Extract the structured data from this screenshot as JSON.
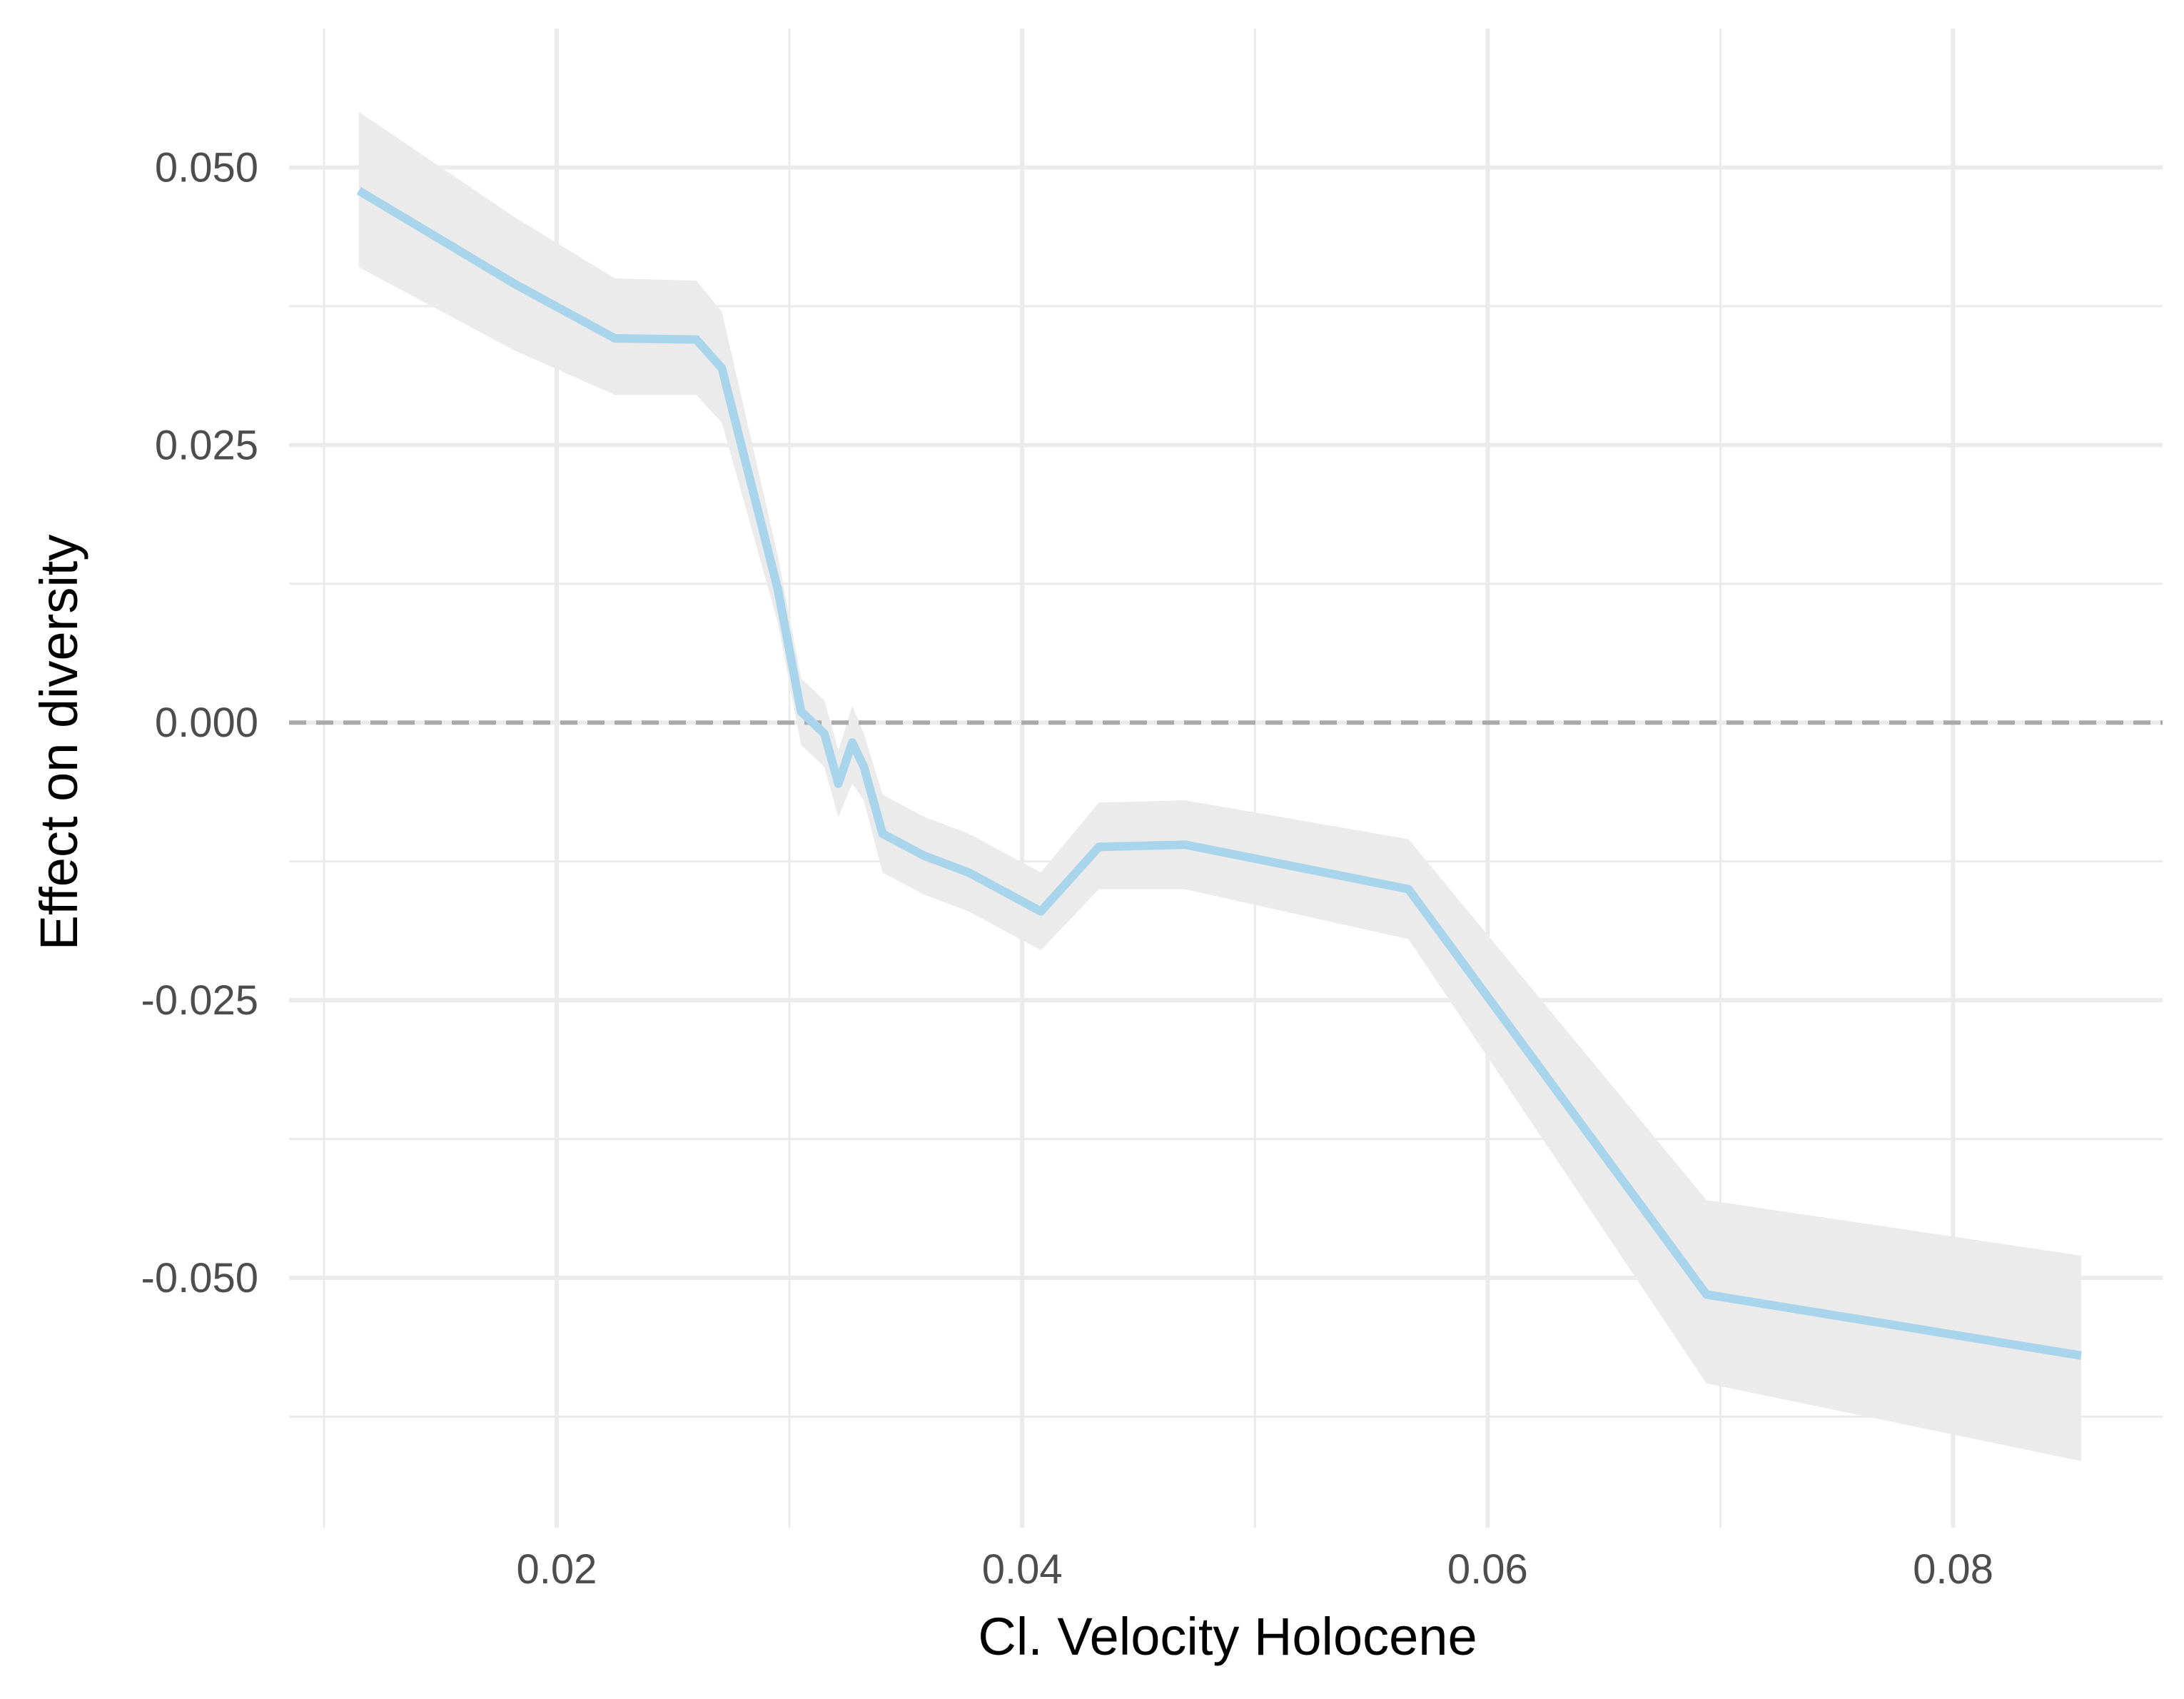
{
  "chart_data": {
    "type": "line",
    "title": "",
    "xlabel": "Cl. Velocity Holocene",
    "ylabel": "Effect on diversity",
    "xlim": [
      0.0085,
      0.089
    ],
    "ylim": [
      -0.0725,
      0.0625
    ],
    "x_ticks": [
      0.02,
      0.04,
      0.06,
      0.08
    ],
    "x_tick_labels": [
      "0.02",
      "0.04",
      "0.06",
      "0.08"
    ],
    "x_minor_ticks": [
      0.01,
      0.03,
      0.05,
      0.07
    ],
    "y_ticks": [
      0.05,
      0.025,
      0.0,
      -0.025,
      -0.05
    ],
    "y_tick_labels": [
      "0.050",
      "0.025",
      "0.000",
      "-0.025",
      "-0.050"
    ],
    "y_minor_ticks": [
      0.0375,
      0.0125,
      -0.0125,
      -0.0375,
      -0.0625
    ],
    "grid": true,
    "reference_line": {
      "y": 0.0,
      "style": "dashed",
      "color": "#aaaaaa"
    },
    "colors": {
      "line": "#a8d4ec",
      "ribbon": "#ebebeb",
      "grid": "#ebebeb"
    },
    "series": [
      {
        "name": "Effect on diversity",
        "x": [
          0.0115,
          0.0182,
          0.0225,
          0.026,
          0.0271,
          0.0295,
          0.0305,
          0.0315,
          0.0321,
          0.0327,
          0.0332,
          0.034,
          0.0358,
          0.0377,
          0.0408,
          0.0433,
          0.047,
          0.0566,
          0.0694,
          0.0855
        ],
        "y": [
          0.0479,
          0.0395,
          0.0346,
          0.0345,
          0.0319,
          0.012,
          0.001,
          -0.001,
          -0.0055,
          -0.0018,
          -0.004,
          -0.01,
          -0.012,
          -0.0135,
          -0.017,
          -0.0112,
          -0.011,
          -0.015,
          -0.0515,
          -0.057
        ],
        "lower": [
          0.041,
          0.0335,
          0.0295,
          0.0295,
          0.027,
          0.009,
          -0.002,
          -0.004,
          -0.0085,
          -0.0055,
          -0.007,
          -0.0135,
          -0.0155,
          -0.017,
          -0.0205,
          -0.015,
          -0.015,
          -0.0195,
          -0.0595,
          -0.0665
        ],
        "upper": [
          0.055,
          0.0455,
          0.04,
          0.0398,
          0.037,
          0.015,
          0.004,
          0.002,
          -0.0025,
          0.0015,
          -0.001,
          -0.0065,
          -0.0085,
          -0.01,
          -0.0135,
          -0.0072,
          -0.007,
          -0.0105,
          -0.043,
          -0.048
        ]
      }
    ]
  }
}
